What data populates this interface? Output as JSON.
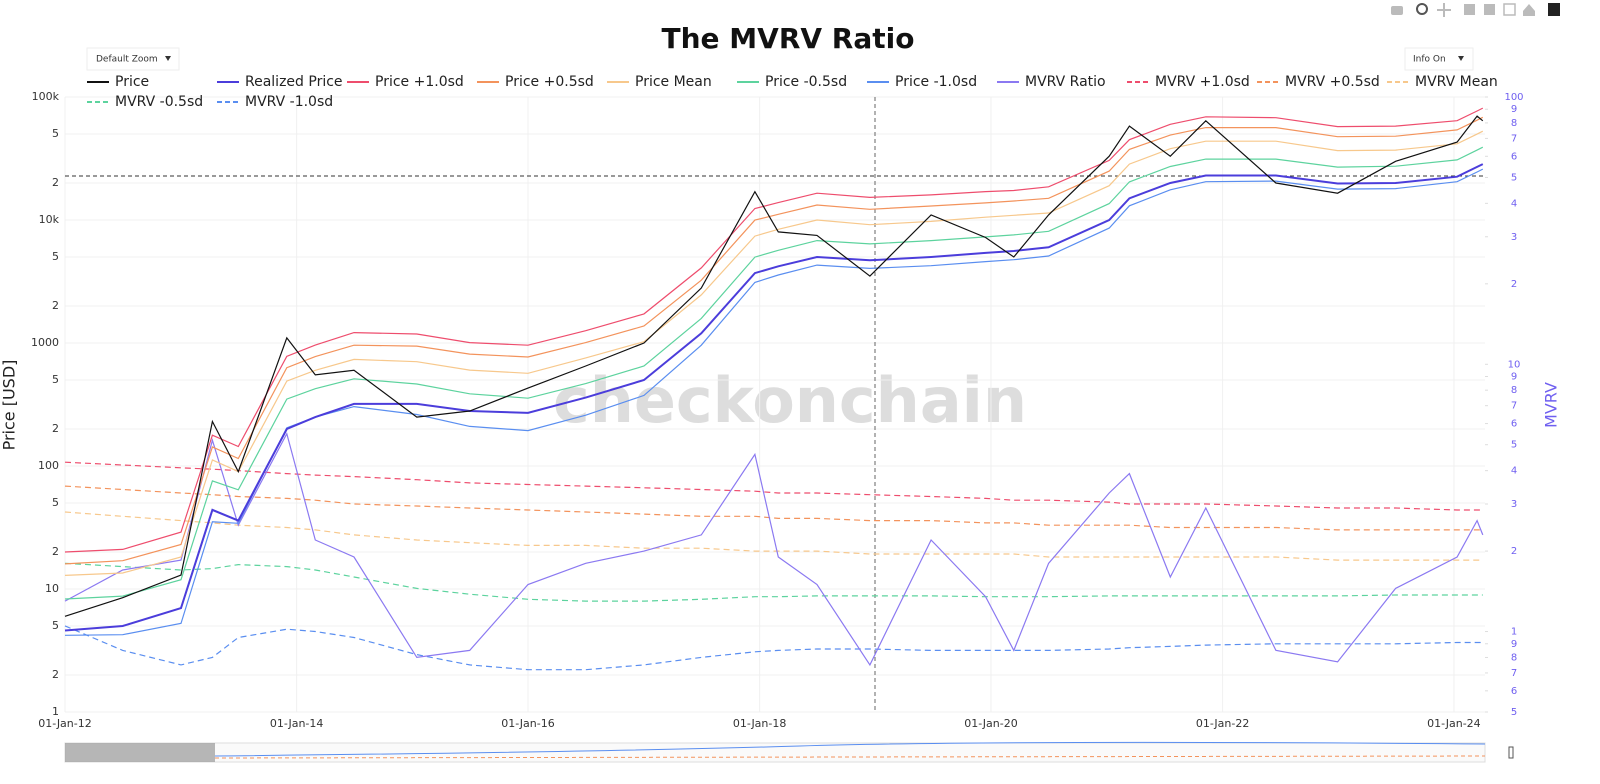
{
  "chart_data": {
    "type": "line",
    "title": "The MVRV Ratio",
    "controls": {
      "zoom": "Default Zoom",
      "info": "Info On"
    },
    "watermark": "checkonchain",
    "y_label": "Price [USD]",
    "y2_label": "MVRV",
    "ylog": true,
    "y2log": true,
    "grid": true,
    "legend": "top",
    "x": [
      "2012-01-01",
      "2012-07-01",
      "2013-01-01",
      "2013-04-10",
      "2013-07-01",
      "2013-12-01",
      "2014-03-01",
      "2014-07-01",
      "2015-01-15",
      "2015-07-01",
      "2016-01-01",
      "2016-07-01",
      "2017-01-01",
      "2017-07-01",
      "2017-12-17",
      "2018-03-01",
      "2018-07-01",
      "2018-12-15",
      "2019-06-26",
      "2019-12-15",
      "2020-03-13",
      "2020-07-01",
      "2021-01-08",
      "2021-03-13",
      "2021-07-20",
      "2021-11-09",
      "2022-06-18",
      "2022-12-30",
      "2023-07-01",
      "2024-01-11",
      "2024-03-14",
      "2024-04-01"
    ],
    "xlim": [
      "2012-01-01",
      "2024-04-08"
    ],
    "xticks": [
      {
        "value": "2012-01-01",
        "label": "01-Jan-12"
      },
      {
        "value": "2014-01-01",
        "label": "01-Jan-14"
      },
      {
        "value": "2016-01-01",
        "label": "01-Jan-16"
      },
      {
        "value": "2018-01-01",
        "label": "01-Jan-18"
      },
      {
        "value": "2020-01-01",
        "label": "01-Jan-20"
      },
      {
        "value": "2022-01-01",
        "label": "01-Jan-22"
      },
      {
        "value": "2024-01-01",
        "label": "01-Jan-24"
      }
    ],
    "ylim": [
      1,
      100000
    ],
    "yticks": [
      1,
      2,
      5,
      10,
      {
        "value": 20,
        "label": "2"
      },
      {
        "value": 50,
        "label": "5"
      },
      100,
      {
        "value": 200,
        "label": "2"
      },
      {
        "value": 500,
        "label": "5"
      },
      1000,
      {
        "value": 2000,
        "label": "2"
      },
      {
        "value": 5000,
        "label": "5"
      },
      {
        "value": 10000,
        "label": "10k"
      },
      {
        "value": 20000,
        "label": "2"
      },
      {
        "value": 50000,
        "label": "5"
      },
      {
        "value": 100000,
        "label": "100k"
      }
    ],
    "y2lim": [
      0.5,
      100
    ],
    "y2ticks": [
      {
        "value": 0.5,
        "label": "5"
      },
      {
        "value": 0.6,
        "label": "6"
      },
      {
        "value": 0.7,
        "label": "7"
      },
      {
        "value": 0.8,
        "label": "8"
      },
      {
        "value": 0.9,
        "label": "9"
      },
      1,
      2,
      3,
      4,
      5,
      6,
      7,
      8,
      9,
      10,
      {
        "value": 20,
        "label": "2"
      },
      {
        "value": 30,
        "label": "3"
      },
      {
        "value": 40,
        "label": "4"
      },
      {
        "value": 50,
        "label": "5"
      },
      {
        "value": 60,
        "label": "6"
      },
      {
        "value": 70,
        "label": "7"
      },
      {
        "value": 80,
        "label": "8"
      },
      {
        "value": 90,
        "label": "9"
      },
      100
    ],
    "series": [
      {
        "name": "Price",
        "color": "#111111",
        "values": [
          6,
          8.5,
          13,
          230,
          90,
          1100,
          550,
          600,
          250,
          280,
          430,
          650,
          1000,
          2800,
          17000,
          8000,
          7500,
          3500,
          11000,
          7200,
          5000,
          11000,
          33000,
          58000,
          33000,
          64000,
          20000,
          16500,
          30000,
          43000,
          70000,
          64000
        ]
      },
      {
        "name": "Realized Price",
        "color": "#4b3ddb",
        "values": [
          4.6,
          5,
          7,
          44,
          36,
          200,
          250,
          320,
          320,
          280,
          270,
          360,
          500,
          1200,
          3700,
          4200,
          5000,
          4700,
          5000,
          5400,
          5600,
          6000,
          10000,
          15000,
          20000,
          23000,
          23000,
          19800,
          20000,
          22500,
          27000,
          28500
        ]
      },
      {
        "name": "Price +1.0sd",
        "color": "#ee4d6d",
        "values": [
          20,
          21,
          29,
          178,
          144,
          780,
          962,
          1216,
          1184,
          1008,
          959,
          1260,
          1725,
          4080,
          12400,
          13860,
          16500,
          15280,
          16000,
          17010,
          17360,
          18600,
          30500,
          45000,
          60000,
          69000,
          67850,
          57420,
          58000,
          64130,
          77000,
          81230
        ]
      },
      {
        "name": "Price +0.5sd",
        "color": "#f3935c",
        "values": [
          16,
          17,
          23,
          143,
          115,
          630,
          775,
          960,
          944,
          812,
          770,
          1008,
          1375,
          3240,
          9990,
          11130,
          13250,
          12220,
          13000,
          13770,
          14280,
          15000,
          25000,
          37500,
          49000,
          56350,
          56350,
          47520,
          48000,
          54000,
          64800,
          68400
        ]
      },
      {
        "name": "Price Mean",
        "color": "#f7c88c",
        "values": [
          12.9,
          13.5,
          18.2,
          112,
          90,
          490,
          600,
          736,
          704,
          602,
          567,
          756,
          1025,
          2460,
          7400,
          8400,
          10000,
          9165,
          9750,
          10530,
          10920,
          11400,
          19000,
          28500,
          38000,
          43700,
          43700,
          36630,
          37000,
          41625,
          49950,
          52725
        ]
      },
      {
        "name": "Price -0.5sd",
        "color": "#5dd39e",
        "values": [
          8.3,
          8.75,
          11.9,
          75.7,
          64.1,
          350,
          425,
          512,
          464,
          386,
          356,
          468,
          650,
          1584,
          4995,
          5670,
          6800,
          6392,
          6800,
          7290,
          7560,
          8100,
          13600,
          20400,
          27200,
          31280,
          31280,
          26930,
          27400,
          30825,
          36990,
          39045
        ]
      },
      {
        "name": "Price -1.0sd",
        "color": "#5a8ef0",
        "values": [
          4.2,
          4.25,
          5.25,
          35.2,
          34.2,
          204,
          250,
          304,
          262,
          210,
          194,
          259,
          375,
          960,
          3108,
          3570,
          4300,
          4042,
          4250,
          4590,
          4760,
          5100,
          8600,
          13050,
          17600,
          20470,
          20700,
          17820,
          18000,
          20475,
          24570,
          25935
        ]
      },
      {
        "name": "MVRV Ratio",
        "color": "#8b79f1",
        "axis": "y2",
        "values": [
          1.3,
          1.7,
          1.85,
          5.2,
          2.5,
          5.5,
          2.2,
          1.9,
          0.8,
          0.85,
          1.5,
          1.8,
          2.0,
          2.3,
          4.6,
          1.9,
          1.5,
          0.75,
          2.2,
          1.35,
          0.85,
          1.8,
          3.3,
          3.9,
          1.6,
          2.9,
          0.85,
          0.77,
          1.45,
          1.9,
          2.6,
          2.3
        ]
      },
      {
        "name": "MVRV +1.0sd",
        "color": "#ee4d6d",
        "dash": true,
        "axis": "y2",
        "values": [
          4.3,
          4.2,
          4.1,
          4.05,
          4.0,
          3.9,
          3.85,
          3.8,
          3.7,
          3.6,
          3.55,
          3.5,
          3.45,
          3.4,
          3.35,
          3.3,
          3.3,
          3.25,
          3.2,
          3.15,
          3.1,
          3.1,
          3.05,
          3.0,
          3.0,
          3.0,
          2.95,
          2.9,
          2.9,
          2.85,
          2.85,
          2.85
        ]
      },
      {
        "name": "MVRV +0.5sd",
        "color": "#f3935c",
        "dash": true,
        "axis": "y2",
        "values": [
          3.5,
          3.4,
          3.3,
          3.25,
          3.2,
          3.15,
          3.1,
          3.0,
          2.95,
          2.9,
          2.85,
          2.8,
          2.75,
          2.7,
          2.7,
          2.65,
          2.65,
          2.6,
          2.6,
          2.55,
          2.55,
          2.5,
          2.5,
          2.5,
          2.45,
          2.45,
          2.45,
          2.4,
          2.4,
          2.4,
          2.4,
          2.4
        ]
      },
      {
        "name": "MVRV Mean",
        "color": "#f7c88c",
        "dash": true,
        "axis": "y2",
        "values": [
          2.8,
          2.7,
          2.6,
          2.55,
          2.5,
          2.45,
          2.4,
          2.3,
          2.2,
          2.15,
          2.1,
          2.1,
          2.05,
          2.05,
          2.0,
          2.0,
          2.0,
          1.95,
          1.95,
          1.95,
          1.95,
          1.9,
          1.9,
          1.9,
          1.9,
          1.9,
          1.9,
          1.85,
          1.85,
          1.85,
          1.85,
          1.85
        ]
      },
      {
        "name": "MVRV -0.5sd",
        "color": "#5dd39e",
        "dash": true,
        "axis": "y2",
        "values": [
          1.8,
          1.75,
          1.7,
          1.72,
          1.78,
          1.75,
          1.7,
          1.6,
          1.45,
          1.38,
          1.32,
          1.3,
          1.3,
          1.32,
          1.35,
          1.35,
          1.36,
          1.36,
          1.36,
          1.35,
          1.35,
          1.35,
          1.36,
          1.36,
          1.36,
          1.36,
          1.36,
          1.36,
          1.37,
          1.37,
          1.37,
          1.37
        ]
      },
      {
        "name": "MVRV -1.0sd",
        "color": "#5a8ef0",
        "dash": true,
        "axis": "y2",
        "values": [
          1.05,
          0.85,
          0.75,
          0.8,
          0.95,
          1.02,
          1.0,
          0.95,
          0.82,
          0.75,
          0.72,
          0.72,
          0.75,
          0.8,
          0.84,
          0.85,
          0.86,
          0.86,
          0.85,
          0.85,
          0.85,
          0.85,
          0.86,
          0.87,
          0.88,
          0.89,
          0.9,
          0.9,
          0.9,
          0.91,
          0.91,
          0.91
        ]
      }
    ]
  }
}
